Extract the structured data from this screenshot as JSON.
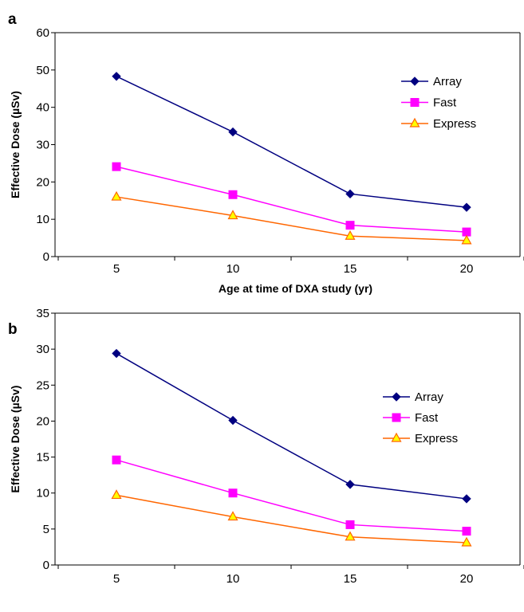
{
  "chart_data": [
    {
      "panel": "a",
      "type": "line",
      "x": [
        5,
        10,
        15,
        20
      ],
      "xlabel": "Age at time of DXA study (yr)",
      "ylabel": "Effective Dose (µSv)",
      "ylim": [
        0,
        60
      ],
      "yticks": [
        0,
        10,
        20,
        30,
        40,
        50,
        60
      ],
      "grid": false,
      "legend_position": "top-right",
      "series": [
        {
          "name": "Array",
          "values": [
            48.3,
            33.4,
            16.8,
            13.2
          ],
          "color": "#000080",
          "marker": "diamond"
        },
        {
          "name": "Fast",
          "values": [
            24.1,
            16.6,
            8.4,
            6.6
          ],
          "color": "#ff00ff",
          "marker": "square"
        },
        {
          "name": "Express",
          "values": [
            16.0,
            11.0,
            5.5,
            4.3
          ],
          "color": "#ff6600",
          "marker_fill": "#ffff00",
          "marker": "triangle"
        }
      ]
    },
    {
      "panel": "b",
      "type": "line",
      "x": [
        5,
        10,
        15,
        20
      ],
      "xlabel": "Age at time of DXA study (yr)",
      "ylabel": "Effective Dose (µSv)",
      "ylim": [
        0,
        35
      ],
      "yticks": [
        0,
        5,
        10,
        15,
        20,
        25,
        30,
        35
      ],
      "grid": false,
      "legend_position": "top-right",
      "series": [
        {
          "name": "Array",
          "values": [
            29.4,
            20.1,
            11.2,
            9.2
          ],
          "color": "#000080",
          "marker": "diamond"
        },
        {
          "name": "Fast",
          "values": [
            14.6,
            10.0,
            5.6,
            4.7
          ],
          "color": "#ff00ff",
          "marker": "square"
        },
        {
          "name": "Express",
          "values": [
            9.7,
            6.7,
            3.9,
            3.1
          ],
          "color": "#ff6600",
          "marker_fill": "#ffff00",
          "marker": "triangle"
        }
      ]
    }
  ]
}
